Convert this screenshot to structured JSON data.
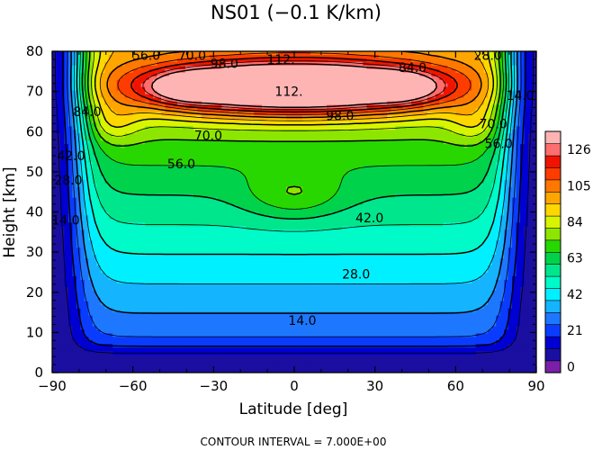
{
  "chart_data": {
    "type": "heatmap",
    "title": "NS01 (−0.1 K/km)",
    "xlabel": "Latitude [deg]",
    "ylabel": "Height [km]",
    "xlim": [
      -90,
      90
    ],
    "ylim": [
      0,
      80
    ],
    "x_ticks": [
      "−90",
      "−60",
      "−30",
      "0",
      "30",
      "60",
      "90"
    ],
    "x_tick_values": [
      -90,
      -60,
      -30,
      0,
      30,
      60,
      90
    ],
    "y_ticks": [
      "0",
      "10",
      "20",
      "30",
      "40",
      "50",
      "60",
      "70",
      "80"
    ],
    "y_tick_values": [
      0,
      10,
      20,
      30,
      40,
      50,
      60,
      70,
      80
    ],
    "contour_interval": 7,
    "contour_levels": [
      0,
      7,
      14,
      21,
      28,
      35,
      42,
      49,
      56,
      63,
      70,
      77,
      84,
      91,
      98,
      105,
      112,
      119,
      126
    ],
    "colorbar": {
      "tick_labels": [
        "0",
        "21",
        "42",
        "63",
        "84",
        "105",
        "126"
      ],
      "tick_values": [
        0,
        21,
        42,
        63,
        84,
        105,
        126
      ],
      "colors": [
        "#7a1fa8",
        "#1a0fa0",
        "#0000d2",
        "#0a3cff",
        "#1e78ff",
        "#14b4ff",
        "#00f0ff",
        "#00fac8",
        "#00e68c",
        "#00d24b",
        "#28d700",
        "#8ce600",
        "#d7f500",
        "#ffd700",
        "#ffa500",
        "#ff7800",
        "#ff3c00",
        "#f01400",
        "#ff6e6e",
        "#ffb4b4"
      ]
    },
    "contour_labels": [
      {
        "text": "14.0",
        "lat": 3,
        "z": 13
      },
      {
        "text": "28.0",
        "lat": 23,
        "z": 24.5
      },
      {
        "text": "42.0",
        "lat": 28,
        "z": 38.5
      },
      {
        "text": "56.0",
        "lat": -42,
        "z": 52
      },
      {
        "text": "70.0",
        "lat": -32,
        "z": 59
      },
      {
        "text": "98.0",
        "lat": 17,
        "z": 64
      },
      {
        "text": "112.",
        "lat": -2,
        "z": 70
      },
      {
        "text": "112.",
        "lat": -5,
        "z": 78
      },
      {
        "text": "98.0",
        "lat": -26,
        "z": 77
      },
      {
        "text": "84.0",
        "lat": 44,
        "z": 76
      },
      {
        "text": "84.0",
        "lat": -77,
        "z": 65
      },
      {
        "text": "70.0",
        "lat": 74,
        "z": 62
      },
      {
        "text": "56.0",
        "lat": 76,
        "z": 57
      },
      {
        "text": "42.0",
        "lat": -83,
        "z": 54
      },
      {
        "text": "28.0",
        "lat": -84,
        "z": 48
      },
      {
        "text": "14.0",
        "lat": -85,
        "z": 38
      },
      {
        "text": "56.0",
        "lat": -55,
        "z": 79
      },
      {
        "text": "70.0",
        "lat": -38,
        "z": 79
      },
      {
        "text": "28.0",
        "lat": 72,
        "z": 79
      },
      {
        "text": "14.0",
        "lat": 84,
        "z": 69
      }
    ],
    "footer": "CONTOUR INTERVAL = 7.000E+00"
  }
}
